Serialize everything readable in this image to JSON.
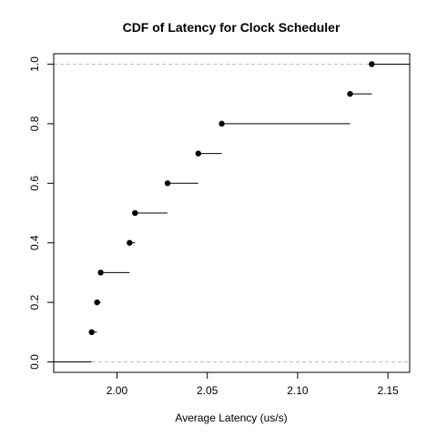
{
  "chart_data": {
    "type": "step",
    "title": "CDF of Latency for Clock Scheduler",
    "xlabel": "Average Latency (us/s)",
    "ylabel": "",
    "xlim": [
      1.965,
      2.162
    ],
    "ylim": [
      -0.035,
      1.035
    ],
    "x_ticks": [
      2.0,
      2.05,
      2.1,
      2.15
    ],
    "x_tick_labels": [
      "2.00",
      "2.05",
      "2.10",
      "2.15"
    ],
    "y_ticks": [
      0.0,
      0.2,
      0.4,
      0.6,
      0.8,
      1.0
    ],
    "y_tick_labels": [
      "0.0",
      "0.2",
      "0.4",
      "0.6",
      "0.8",
      "1.0"
    ],
    "reference_lines_y": [
      0.0,
      1.0
    ],
    "points": [
      {
        "x": 1.986,
        "y": 0.1
      },
      {
        "x": 1.989,
        "y": 0.2
      },
      {
        "x": 1.991,
        "y": 0.3
      },
      {
        "x": 2.007,
        "y": 0.4
      },
      {
        "x": 2.01,
        "y": 0.5
      },
      {
        "x": 2.028,
        "y": 0.6
      },
      {
        "x": 2.045,
        "y": 0.7
      },
      {
        "x": 2.058,
        "y": 0.8
      },
      {
        "x": 2.129,
        "y": 0.9
      },
      {
        "x": 2.141,
        "y": 1.0
      }
    ],
    "grid": false,
    "colors": {
      "line": "#000000",
      "point": "#000000",
      "reference": "#bebebe"
    }
  }
}
